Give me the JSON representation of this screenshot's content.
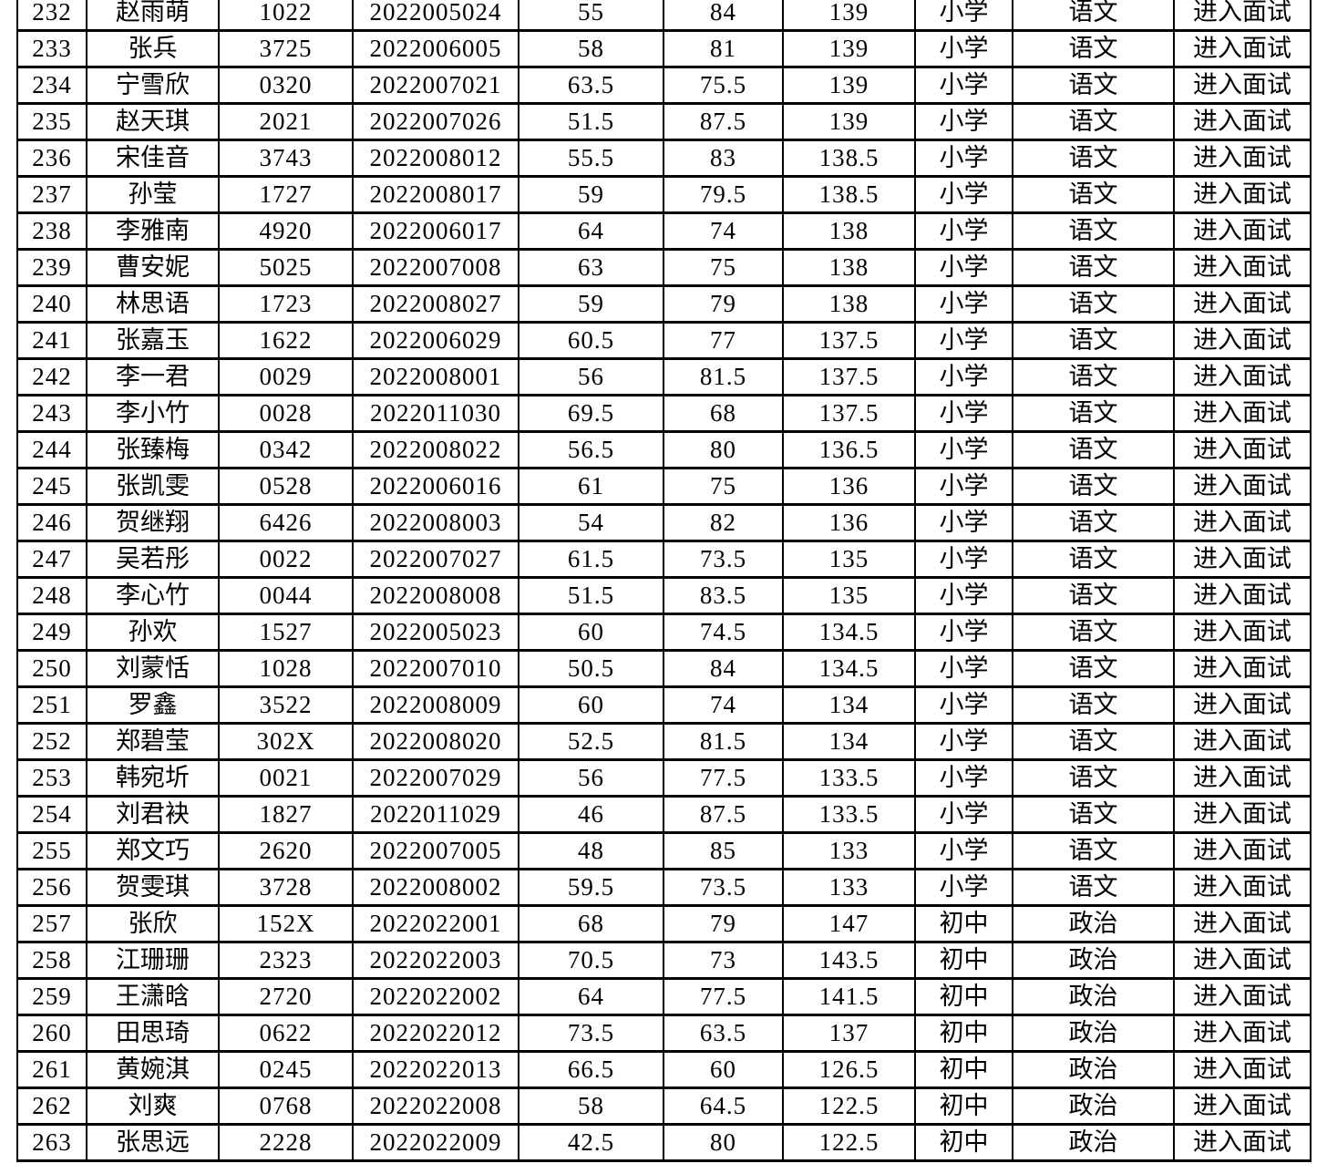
{
  "colors": {
    "background": "#ffffff",
    "border": "#000000",
    "text": "#000000"
  },
  "table": {
    "rows": [
      [
        "232",
        "赵雨萌",
        "1022",
        "2022005024",
        "55",
        "84",
        "139",
        "小学",
        "语文",
        "进入面试"
      ],
      [
        "233",
        "张兵",
        "3725",
        "2022006005",
        "58",
        "81",
        "139",
        "小学",
        "语文",
        "进入面试"
      ],
      [
        "234",
        "宁雪欣",
        "0320",
        "2022007021",
        "63.5",
        "75.5",
        "139",
        "小学",
        "语文",
        "进入面试"
      ],
      [
        "235",
        "赵天琪",
        "2021",
        "2022007026",
        "51.5",
        "87.5",
        "139",
        "小学",
        "语文",
        "进入面试"
      ],
      [
        "236",
        "宋佳音",
        "3743",
        "2022008012",
        "55.5",
        "83",
        "138.5",
        "小学",
        "语文",
        "进入面试"
      ],
      [
        "237",
        "孙莹",
        "1727",
        "2022008017",
        "59",
        "79.5",
        "138.5",
        "小学",
        "语文",
        "进入面试"
      ],
      [
        "238",
        "李雅南",
        "4920",
        "2022006017",
        "64",
        "74",
        "138",
        "小学",
        "语文",
        "进入面试"
      ],
      [
        "239",
        "曹安妮",
        "5025",
        "2022007008",
        "63",
        "75",
        "138",
        "小学",
        "语文",
        "进入面试"
      ],
      [
        "240",
        "林思语",
        "1723",
        "2022008027",
        "59",
        "79",
        "138",
        "小学",
        "语文",
        "进入面试"
      ],
      [
        "241",
        "张嘉玉",
        "1622",
        "2022006029",
        "60.5",
        "77",
        "137.5",
        "小学",
        "语文",
        "进入面试"
      ],
      [
        "242",
        "李一君",
        "0029",
        "2022008001",
        "56",
        "81.5",
        "137.5",
        "小学",
        "语文",
        "进入面试"
      ],
      [
        "243",
        "李小竹",
        "0028",
        "2022011030",
        "69.5",
        "68",
        "137.5",
        "小学",
        "语文",
        "进入面试"
      ],
      [
        "244",
        "张臻梅",
        "0342",
        "2022008022",
        "56.5",
        "80",
        "136.5",
        "小学",
        "语文",
        "进入面试"
      ],
      [
        "245",
        "张凯雯",
        "0528",
        "2022006016",
        "61",
        "75",
        "136",
        "小学",
        "语文",
        "进入面试"
      ],
      [
        "246",
        "贺继翔",
        "6426",
        "2022008003",
        "54",
        "82",
        "136",
        "小学",
        "语文",
        "进入面试"
      ],
      [
        "247",
        "吴若彤",
        "0022",
        "2022007027",
        "61.5",
        "73.5",
        "135",
        "小学",
        "语文",
        "进入面试"
      ],
      [
        "248",
        "李心竹",
        "0044",
        "2022008008",
        "51.5",
        "83.5",
        "135",
        "小学",
        "语文",
        "进入面试"
      ],
      [
        "249",
        "孙欢",
        "1527",
        "2022005023",
        "60",
        "74.5",
        "134.5",
        "小学",
        "语文",
        "进入面试"
      ],
      [
        "250",
        "刘蒙恬",
        "1028",
        "2022007010",
        "50.5",
        "84",
        "134.5",
        "小学",
        "语文",
        "进入面试"
      ],
      [
        "251",
        "罗鑫",
        "3522",
        "2022008009",
        "60",
        "74",
        "134",
        "小学",
        "语文",
        "进入面试"
      ],
      [
        "252",
        "郑碧莹",
        "302X",
        "2022008020",
        "52.5",
        "81.5",
        "134",
        "小学",
        "语文",
        "进入面试"
      ],
      [
        "253",
        "韩宛圻",
        "0021",
        "2022007029",
        "56",
        "77.5",
        "133.5",
        "小学",
        "语文",
        "进入面试"
      ],
      [
        "254",
        "刘君袂",
        "1827",
        "2022011029",
        "46",
        "87.5",
        "133.5",
        "小学",
        "语文",
        "进入面试"
      ],
      [
        "255",
        "郑文巧",
        "2620",
        "2022007005",
        "48",
        "85",
        "133",
        "小学",
        "语文",
        "进入面试"
      ],
      [
        "256",
        "贺雯琪",
        "3728",
        "2022008002",
        "59.5",
        "73.5",
        "133",
        "小学",
        "语文",
        "进入面试"
      ],
      [
        "257",
        "张欣",
        "152X",
        "2022022001",
        "68",
        "79",
        "147",
        "初中",
        "政治",
        "进入面试"
      ],
      [
        "258",
        "江珊珊",
        "2323",
        "2022022003",
        "70.5",
        "73",
        "143.5",
        "初中",
        "政治",
        "进入面试"
      ],
      [
        "259",
        "王潇晗",
        "2720",
        "2022022002",
        "64",
        "77.5",
        "141.5",
        "初中",
        "政治",
        "进入面试"
      ],
      [
        "260",
        "田思琦",
        "0622",
        "2022022012",
        "73.5",
        "63.5",
        "137",
        "初中",
        "政治",
        "进入面试"
      ],
      [
        "261",
        "黄婉淇",
        "0245",
        "2022022013",
        "66.5",
        "60",
        "126.5",
        "初中",
        "政治",
        "进入面试"
      ],
      [
        "262",
        "刘爽",
        "0768",
        "2022022008",
        "58",
        "64.5",
        "122.5",
        "初中",
        "政治",
        "进入面试"
      ],
      [
        "263",
        "张思远",
        "2228",
        "2022022009",
        "42.5",
        "80",
        "122.5",
        "初中",
        "政治",
        "进入面试"
      ]
    ]
  }
}
